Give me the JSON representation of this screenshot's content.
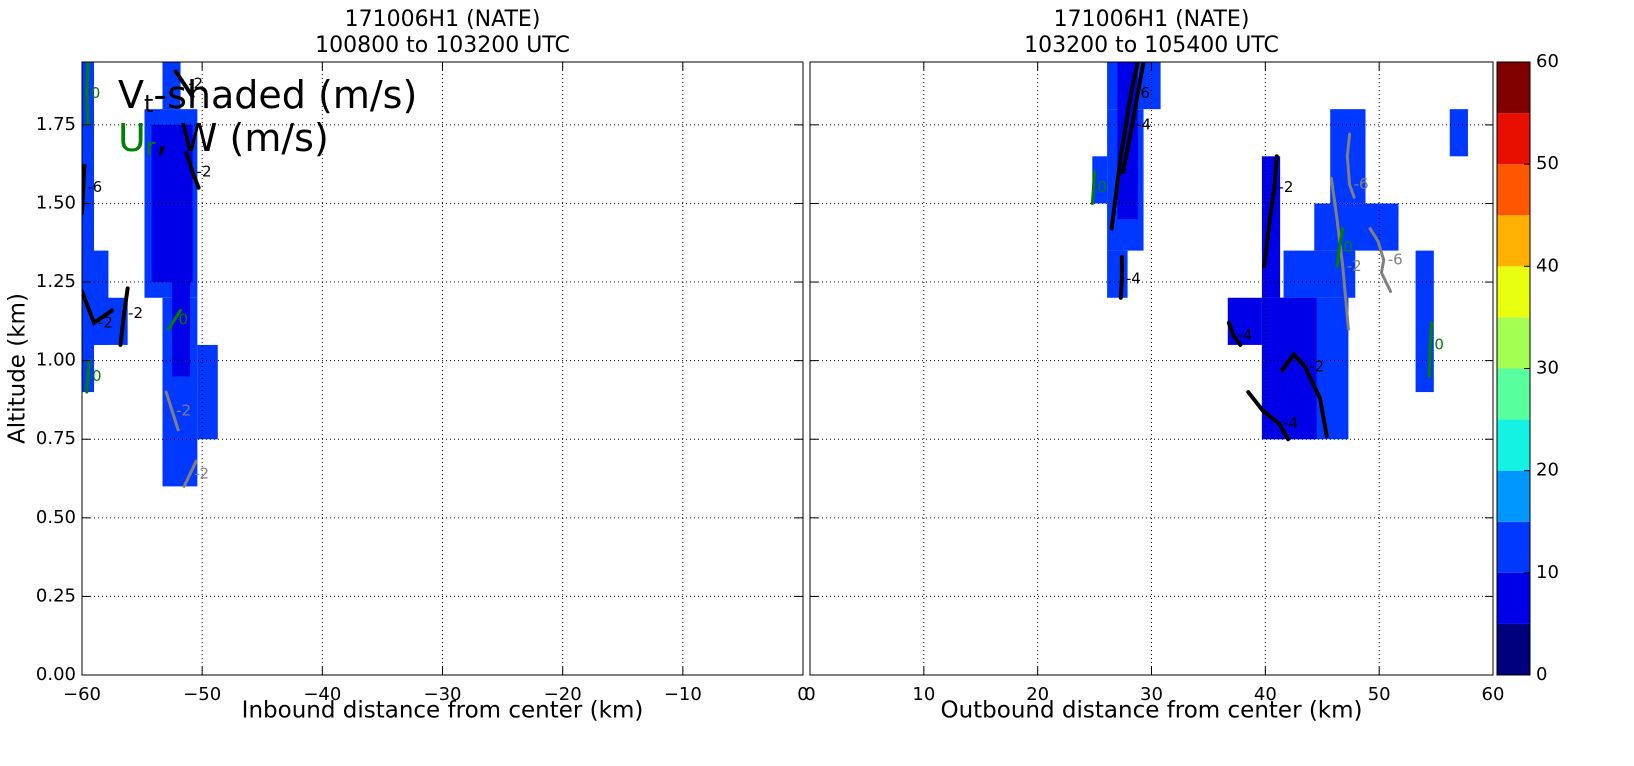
{
  "chart_data": [
    {
      "type": "contour",
      "title": "171006H1 (NATE)",
      "subtitle": "100800 to 103200 UTC",
      "xlabel": "Inbound distance from center (km)",
      "ylabel": "Altitude (km)",
      "xlim": [
        -60,
        0
      ],
      "ylim": [
        0,
        1.95
      ],
      "xticks": [
        {
          "value": -60,
          "label": "−60"
        },
        {
          "value": -50,
          "label": "−50"
        },
        {
          "value": -40,
          "label": "−40"
        },
        {
          "value": -30,
          "label": "−30"
        },
        {
          "value": -20,
          "label": "−20"
        },
        {
          "value": -10,
          "label": "−10"
        },
        0
      ],
      "yticks": [
        {
          "value": 0,
          "label": "0.00"
        },
        {
          "value": 0.25,
          "label": "0.25"
        },
        {
          "value": 0.5,
          "label": "0.50"
        },
        {
          "value": 0.75,
          "label": "0.75"
        },
        {
          "value": 1,
          "label": "1.00"
        },
        {
          "value": 1.25,
          "label": "1.25"
        },
        {
          "value": 1.5,
          "label": "1.50"
        },
        {
          "value": 1.75,
          "label": "1.75"
        }
      ],
      "grid": true,
      "legend": [
        {
          "text": "V",
          "sub": "t",
          "rest": "-shaded (m/s)",
          "color": "#000000"
        },
        {
          "text": "U",
          "sub": "r",
          "rest": ", W (m/s)",
          "color": "#008000"
        }
      ],
      "regions": [
        {
          "x": [
            -60,
            -59
          ],
          "y": [
            0.9,
            1.95
          ],
          "value": 12
        },
        {
          "x": [
            -60,
            -57.8
          ],
          "y": [
            1.05,
            1.35
          ],
          "value": 12
        },
        {
          "x": [
            -60,
            -56.2
          ],
          "y": [
            1.05,
            1.2
          ],
          "value": 12
        },
        {
          "x": [
            -54.8,
            -50.4
          ],
          "y": [
            1.2,
            1.8
          ],
          "value": 12
        },
        {
          "x": [
            -54.2,
            -50.8
          ],
          "y": [
            1.25,
            1.75
          ],
          "value": 8
        },
        {
          "x": [
            -53.3,
            -50.4
          ],
          "y": [
            0.6,
            1.2
          ],
          "value": 12
        },
        {
          "x": [
            -52.5,
            -51
          ],
          "y": [
            0.95,
            1.3
          ],
          "value": 8
        },
        {
          "x": [
            -50.4,
            -48.7
          ],
          "y": [
            0.75,
            1.05
          ],
          "value": 12
        },
        {
          "x": [
            -53.3,
            -51.8
          ],
          "y": [
            1.8,
            1.95
          ],
          "value": 12
        }
      ],
      "contours": [
        {
          "level": -2,
          "color": "#000000",
          "x": [
            -60,
            -59,
            -57.5
          ],
          "y": [
            1.22,
            1.12,
            1.16
          ]
        },
        {
          "level": -2,
          "color": "#000000",
          "x": [
            -56.8,
            -56.5,
            -56.2
          ],
          "y": [
            1.05,
            1.15,
            1.23
          ]
        },
        {
          "level": -6,
          "color": "#000000",
          "x": [
            -60,
            -59.9,
            -59.8
          ],
          "y": [
            1.47,
            1.55,
            1.62
          ]
        },
        {
          "level": -2,
          "color": "#000000",
          "x": [
            -52.2,
            -51.5,
            -50.8
          ],
          "y": [
            1.92,
            1.88,
            1.84
          ]
        },
        {
          "level": -2,
          "color": "#000000",
          "x": [
            -51.3,
            -50.8,
            -50.3
          ],
          "y": [
            1.66,
            1.6,
            1.55
          ]
        },
        {
          "level": 0,
          "color": "#008000",
          "x": [
            -59.5,
            -59.6,
            -59.5
          ],
          "y": [
            1.95,
            1.85,
            1.75
          ]
        },
        {
          "level": 0,
          "color": "#008000",
          "x": [
            -52.8,
            -52.3,
            -51.8
          ],
          "y": [
            1.1,
            1.13,
            1.16
          ]
        },
        {
          "level": 0,
          "color": "#008000",
          "x": [
            -59.6,
            -59.5,
            -59.4
          ],
          "y": [
            0.9,
            0.95,
            1.0
          ]
        },
        {
          "level": -2,
          "color": "#808080",
          "x": [
            -53,
            -52.5,
            -52
          ],
          "y": [
            0.9,
            0.84,
            0.78
          ]
        },
        {
          "level": -2,
          "color": "#808080",
          "x": [
            -51.5,
            -51,
            -50.5
          ],
          "y": [
            0.6,
            0.64,
            0.68
          ]
        }
      ]
    },
    {
      "type": "contour",
      "title": "171006H1 (NATE)",
      "subtitle": "103200 to 105400 UTC",
      "xlabel": "Outbound distance from center (km)",
      "xlim": [
        0,
        60
      ],
      "ylim": [
        0,
        1.95
      ],
      "xticks": [
        0,
        10,
        20,
        30,
        40,
        50,
        60
      ],
      "yticks": [
        0,
        0.25,
        0.5,
        0.75,
        1,
        1.25,
        1.5,
        1.75
      ],
      "grid": true,
      "regions": [
        {
          "x": [
            26.1,
            30.8
          ],
          "y": [
            1.8,
            1.95
          ],
          "value": 12
        },
        {
          "x": [
            26.1,
            29.3
          ],
          "y": [
            1.35,
            1.8
          ],
          "value": 12
        },
        {
          "x": [
            27,
            28.8
          ],
          "y": [
            1.45,
            1.95
          ],
          "value": 8
        },
        {
          "x": [
            24.8,
            26.1
          ],
          "y": [
            1.5,
            1.65
          ],
          "value": 12
        },
        {
          "x": [
            26.1,
            27.9
          ],
          "y": [
            1.2,
            1.35
          ],
          "value": 12
        },
        {
          "x": [
            45.7,
            48.8
          ],
          "y": [
            1.5,
            1.8
          ],
          "value": 12
        },
        {
          "x": [
            44.3,
            51.7
          ],
          "y": [
            1.35,
            1.5
          ],
          "value": 12
        },
        {
          "x": [
            41.6,
            47.9
          ],
          "y": [
            1.2,
            1.35
          ],
          "value": 12
        },
        {
          "x": [
            39.7,
            47.3
          ],
          "y": [
            0.75,
            1.2
          ],
          "value": 12
        },
        {
          "x": [
            39.7,
            44.5
          ],
          "y": [
            0.75,
            1.2
          ],
          "value": 8
        },
        {
          "x": [
            36.7,
            39.7
          ],
          "y": [
            1.05,
            1.2
          ],
          "value": 8
        },
        {
          "x": [
            39.7,
            41.3
          ],
          "y": [
            1.2,
            1.65
          ],
          "value": 8
        },
        {
          "x": [
            53.2,
            54.8
          ],
          "y": [
            0.9,
            1.35
          ],
          "value": 12
        },
        {
          "x": [
            56.2,
            57.8
          ],
          "y": [
            1.65,
            1.8
          ],
          "value": 12
        }
      ],
      "contours": [
        {
          "level": -6,
          "color": "#000000",
          "x": [
            26.5,
            27.3,
            28.2,
            28.8
          ],
          "y": [
            1.42,
            1.65,
            1.85,
            1.95
          ]
        },
        {
          "level": -4,
          "color": "#000000",
          "x": [
            27.5,
            28.3,
            29.3
          ],
          "y": [
            1.6,
            1.75,
            1.95
          ]
        },
        {
          "level": -4,
          "color": "#000000",
          "x": [
            27.3,
            27.4,
            27.4
          ],
          "y": [
            1.2,
            1.26,
            1.33
          ]
        },
        {
          "level": -2,
          "color": "#000000",
          "x": [
            39.9,
            40.4,
            40.8,
            41
          ],
          "y": [
            1.3,
            1.45,
            1.55,
            1.65
          ]
        },
        {
          "level": -2,
          "color": "#000000",
          "x": [
            41.5,
            42.5,
            43.5,
            44.8,
            45.4
          ],
          "y": [
            0.97,
            1.02,
            0.98,
            0.88,
            0.76
          ]
        },
        {
          "level": -4,
          "color": "#000000",
          "x": [
            38.5,
            39.8,
            41.2,
            42
          ],
          "y": [
            0.9,
            0.84,
            0.8,
            0.75
          ]
        },
        {
          "level": -4,
          "color": "#000000",
          "x": [
            36.8,
            37.2,
            37.8
          ],
          "y": [
            1.12,
            1.08,
            1.05
          ]
        },
        {
          "level": -6,
          "color": "#808080",
          "x": [
            47.4,
            47.2,
            47.4,
            47.8
          ],
          "y": [
            1.72,
            1.65,
            1.56,
            1.52
          ]
        },
        {
          "level": -6,
          "color": "#808080",
          "x": [
            49.2,
            49.9,
            50.4,
            50.2,
            51
          ],
          "y": [
            1.42,
            1.38,
            1.32,
            1.28,
            1.22
          ]
        },
        {
          "level": -2,
          "color": "#808080",
          "x": [
            45.8,
            46.3,
            46.8,
            47.3
          ],
          "y": [
            1.58,
            1.45,
            1.3,
            1.1
          ]
        },
        {
          "level": 0,
          "color": "#008000",
          "x": [
            24.8,
            24.9,
            25
          ],
          "y": [
            1.5,
            1.55,
            1.6
          ]
        },
        {
          "level": 0,
          "color": "#008000",
          "x": [
            54.4,
            54.5,
            54.6
          ],
          "y": [
            0.95,
            1.05,
            1.12
          ]
        },
        {
          "level": 0,
          "color": "#008000",
          "x": [
            46.3,
            46.5,
            46.8
          ],
          "y": [
            1.3,
            1.36,
            1.42
          ]
        }
      ]
    },
    {
      "type": "colorbar",
      "levels": [
        0,
        5,
        10,
        15,
        20,
        25,
        30,
        35,
        40,
        45,
        50,
        55,
        60
      ],
      "colors": [
        "#00007f",
        "#0000e8",
        "#0038ff",
        "#0098ff",
        "#14f2e4",
        "#58ff9e",
        "#a4ff52",
        "#e8ff10",
        "#ffb000",
        "#ff5600",
        "#e80f00",
        "#800000"
      ],
      "ylim": [
        0,
        60
      ],
      "yticks": [
        0,
        10,
        20,
        30,
        40,
        50,
        60
      ]
    }
  ]
}
